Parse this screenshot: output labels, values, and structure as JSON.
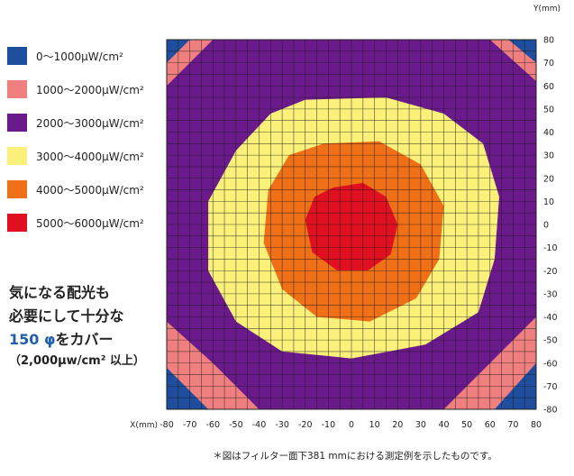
{
  "chart_data": {
    "type": "heatmap",
    "x_unit_label": "X(mm)",
    "y_unit_label": "Y(mm)",
    "x_ticks": [
      -80,
      -70,
      -60,
      -50,
      -40,
      -30,
      -20,
      -10,
      0,
      10,
      20,
      30,
      40,
      50,
      60,
      70,
      80
    ],
    "y_ticks": [
      80,
      70,
      60,
      50,
      40,
      30,
      20,
      10,
      0,
      -10,
      -20,
      -30,
      -40,
      -50,
      -60,
      -70,
      -80
    ],
    "x_range": [
      -80,
      80
    ],
    "y_range": [
      -80,
      80
    ],
    "grid": true,
    "legend_position": "left",
    "levels": [
      {
        "label": "0〜1000μW/cm²",
        "color": "#1f4e9e",
        "min": 0,
        "max": 1000
      },
      {
        "label": "1000〜2000μW/cm²",
        "color": "#f08080",
        "min": 1000,
        "max": 2000
      },
      {
        "label": "2000〜3000μW/cm²",
        "color": "#6b1a8c",
        "min": 2000,
        "max": 3000
      },
      {
        "label": "3000〜4000μW/cm²",
        "color": "#fbf07a",
        "min": 3000,
        "max": 4000
      },
      {
        "label": "4000〜5000μW/cm²",
        "color": "#f07018",
        "min": 4000,
        "max": 5000
      },
      {
        "label": "5000〜6000μW/cm²",
        "color": "#e01020",
        "min": 5000,
        "max": 6000
      }
    ],
    "regions": [
      {
        "level": 1,
        "polygon": [
          [
            -80,
            80
          ],
          [
            80,
            80
          ],
          [
            80,
            -80
          ],
          [
            -80,
            -80
          ]
        ]
      },
      {
        "level": 0,
        "polygon": [
          [
            -80,
            80
          ],
          [
            -70,
            80
          ],
          [
            -80,
            70
          ]
        ]
      },
      {
        "level": 0,
        "polygon": [
          [
            68,
            80
          ],
          [
            80,
            80
          ],
          [
            80,
            70
          ]
        ]
      },
      {
        "level": 0,
        "polygon": [
          [
            -80,
            -62
          ],
          [
            -62,
            -80
          ],
          [
            -80,
            -80
          ]
        ]
      },
      {
        "level": 0,
        "polygon": [
          [
            62,
            -80
          ],
          [
            80,
            -80
          ],
          [
            80,
            -60
          ]
        ]
      },
      {
        "level": 2,
        "polygon": [
          [
            -60,
            80
          ],
          [
            60,
            80
          ],
          [
            80,
            62
          ],
          [
            80,
            -40
          ],
          [
            60,
            -60
          ],
          [
            40,
            -80
          ],
          [
            -40,
            -80
          ],
          [
            -60,
            -60
          ],
          [
            -80,
            -42
          ],
          [
            -80,
            60
          ]
        ]
      },
      {
        "level": 3,
        "polygon": [
          [
            -20,
            54
          ],
          [
            15,
            55
          ],
          [
            40,
            48
          ],
          [
            57,
            35
          ],
          [
            64,
            12
          ],
          [
            62,
            -15
          ],
          [
            55,
            -38
          ],
          [
            32,
            -52
          ],
          [
            0,
            -58
          ],
          [
            -30,
            -55
          ],
          [
            -50,
            -42
          ],
          [
            -62,
            -20
          ],
          [
            -62,
            10
          ],
          [
            -50,
            32
          ],
          [
            -35,
            48
          ]
        ]
      },
      {
        "level": 4,
        "polygon": [
          [
            -12,
            35
          ],
          [
            12,
            36
          ],
          [
            30,
            26
          ],
          [
            40,
            8
          ],
          [
            38,
            -15
          ],
          [
            28,
            -32
          ],
          [
            8,
            -42
          ],
          [
            -15,
            -40
          ],
          [
            -30,
            -28
          ],
          [
            -38,
            -8
          ],
          [
            -36,
            15
          ],
          [
            -27,
            30
          ]
        ]
      },
      {
        "level": 5,
        "polygon": [
          [
            -8,
            16
          ],
          [
            5,
            18
          ],
          [
            15,
            12
          ],
          [
            20,
            0
          ],
          [
            17,
            -13
          ],
          [
            7,
            -20
          ],
          [
            -6,
            -20
          ],
          [
            -17,
            -12
          ],
          [
            -20,
            2
          ],
          [
            -16,
            12
          ]
        ]
      }
    ]
  },
  "callout": {
    "line1": "気になる配光も",
    "line2": "必要にして十分な",
    "line3_accent": "150 φ",
    "line3_rest": "をカバー",
    "line4": "（2,000μw/cm² 以上）"
  },
  "footnote": "＊図はフィルター面下381 mmにおける測定例を示したものです。"
}
